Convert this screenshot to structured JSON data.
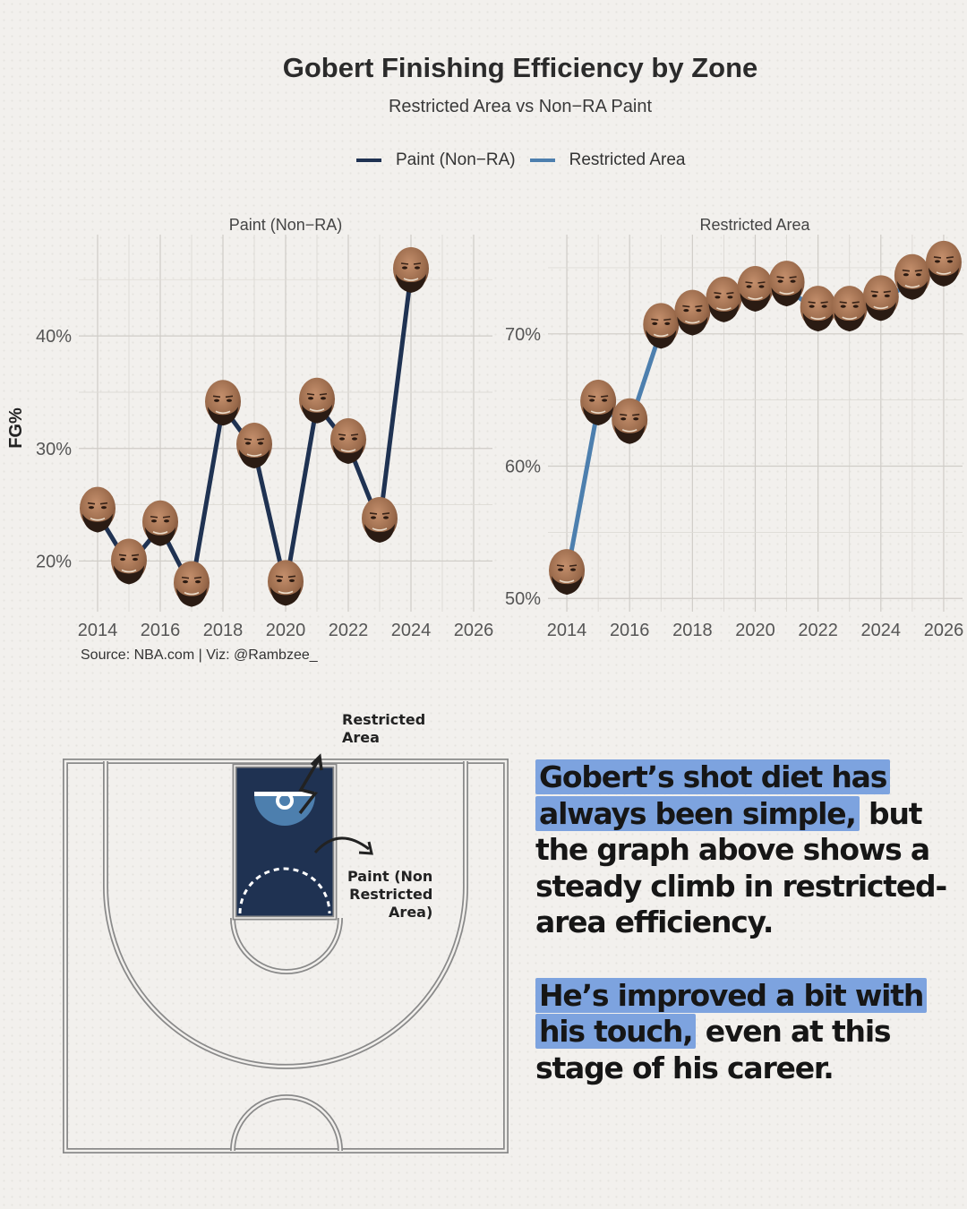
{
  "header": {
    "title": "Gobert Finishing Efficiency by Zone",
    "subtitle": "Restricted Area vs Non−RA Paint"
  },
  "legend": [
    {
      "label": "Paint (Non−RA)",
      "color": "#1f3252"
    },
    {
      "label": "Restricted Area",
      "color": "#4d7fae"
    }
  ],
  "y_axis_title": "FG%",
  "source": "Source: NBA.com | Viz: @Rambzee_",
  "markers": {
    "icon": "player-head-icon"
  },
  "chart_data": [
    {
      "type": "line",
      "facet_title": "Paint (Non−RA)",
      "ylabel": "FG%",
      "series": [
        {
          "name": "Paint (Non−RA)",
          "color": "#1f3252",
          "x": [
            2014,
            2015,
            2016,
            2017,
            2018,
            2019,
            2020,
            2021,
            2022,
            2023,
            2024,
            2025
          ],
          "y": [
            0.242,
            0.196,
            0.23,
            0.176,
            0.337,
            0.299,
            0.177,
            0.339,
            0.303,
            0.233,
            0.455,
            null
          ]
        }
      ],
      "xlim": [
        2013.4,
        2026.6
      ],
      "ylim": [
        0.155,
        0.49
      ],
      "x_ticks": [
        2014,
        2016,
        2018,
        2020,
        2022,
        2024,
        2026
      ],
      "y_ticks": [
        0.2,
        0.3,
        0.4
      ],
      "y_tick_labels": [
        "20%",
        "30%",
        "40%"
      ],
      "grid": true
    },
    {
      "type": "line",
      "facet_title": "Restricted Area",
      "series": [
        {
          "name": "Restricted Area",
          "color": "#4d7fae",
          "x": [
            2014,
            2015,
            2016,
            2017,
            2018,
            2019,
            2020,
            2021,
            2022,
            2023,
            2024,
            2025,
            2026
          ],
          "y": [
            0.517,
            0.645,
            0.631,
            0.703,
            0.713,
            0.723,
            0.731,
            0.735,
            0.716,
            0.716,
            0.724,
            0.74,
            0.75
          ]
        }
      ],
      "xlim": [
        2013.4,
        2026.6
      ],
      "ylim": [
        0.49,
        0.775
      ],
      "x_ticks": [
        2014,
        2016,
        2018,
        2020,
        2022,
        2024,
        2026
      ],
      "y_ticks": [
        0.5,
        0.6,
        0.7
      ],
      "y_tick_labels": [
        "50%",
        "60%",
        "70%"
      ],
      "grid": true
    }
  ],
  "court": {
    "label_restricted": "Restricted\nArea",
    "label_paint": "Paint (Non\nRestricted\nArea)",
    "paint_color": "#1f3252",
    "ra_color": "#4d7fae"
  },
  "copy": {
    "p1_highlight": "Gobert’s shot diet has always been simple,",
    "p1_rest": " but the graph above shows a steady climb in restricted-area efficiency.",
    "p2_highlight": "He’s improved a bit with his touch,",
    "p2_rest": " even at this stage of his career.",
    "highlight_color": "#7da3df"
  }
}
